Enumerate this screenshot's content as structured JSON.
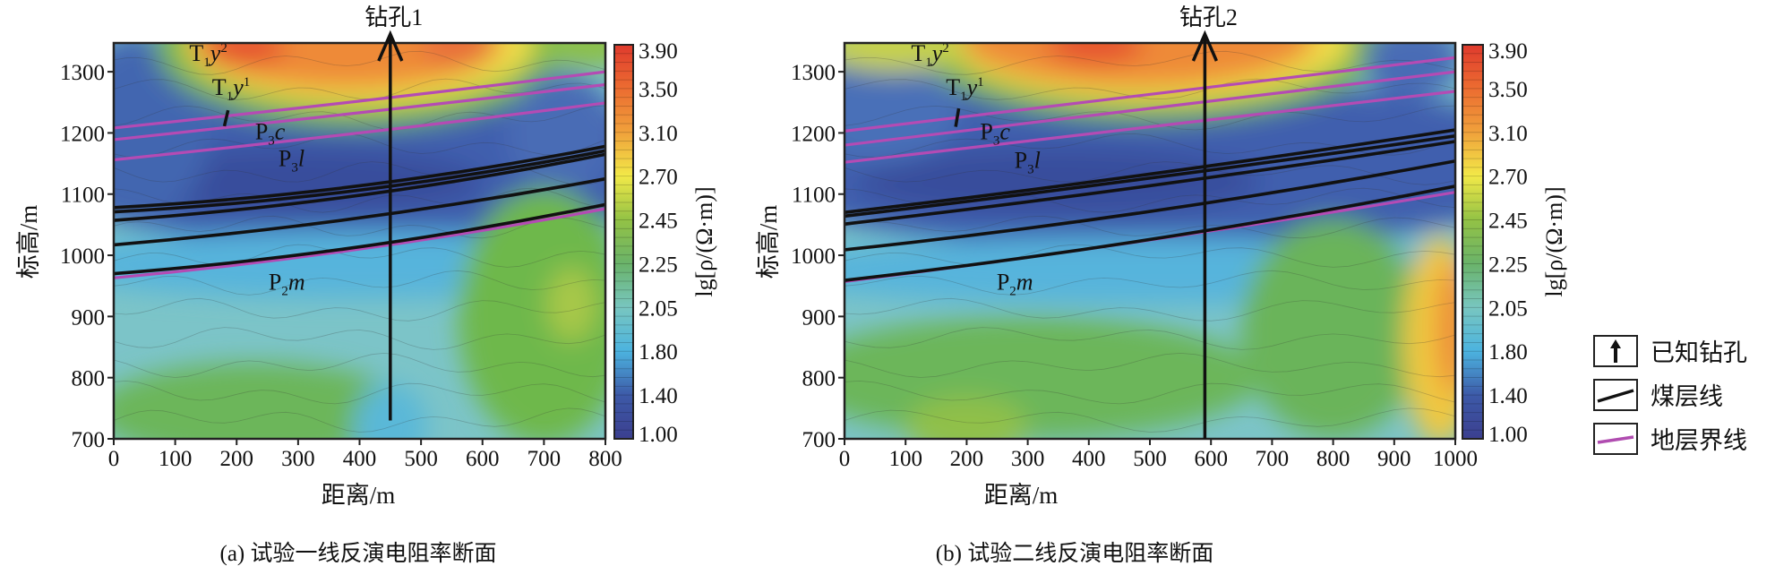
{
  "chart_data": [
    {
      "type": "heatmap",
      "caption": "(a) 试验一线反演电阻率断面",
      "xlabel": "距离/m",
      "ylabel": "标高/m",
      "xlim": [
        0,
        800
      ],
      "ylim": [
        700,
        1347
      ],
      "xticks": [
        0,
        100,
        200,
        300,
        400,
        500,
        600,
        700,
        800
      ],
      "yticks": [
        700,
        800,
        900,
        1000,
        1100,
        1200,
        1300
      ],
      "colorbar": {
        "label": "lg[ρ/(Ω·m)]",
        "ticks": [
          "1.00",
          "1.40",
          "1.80",
          "2.05",
          "2.25",
          "2.45",
          "2.70",
          "3.10",
          "3.50",
          "3.90"
        ],
        "colors": [
          "#3b3f8f",
          "#3d5aa8",
          "#4cb3df",
          "#78c6c0",
          "#6ab36a",
          "#93c245",
          "#f2e948",
          "#f0a13b",
          "#ec6c31",
          "#df3a2d"
        ]
      },
      "borehole": {
        "label": "钻孔1",
        "x": 450,
        "bottom": 730
      },
      "boundary_lines": [
        [
          [
            0,
            1208
          ],
          [
            400,
            1252
          ],
          [
            800,
            1300
          ]
        ],
        [
          [
            0,
            1189
          ],
          [
            400,
            1233
          ],
          [
            800,
            1279
          ]
        ],
        [
          [
            0,
            1156
          ],
          [
            400,
            1200
          ],
          [
            800,
            1249
          ]
        ],
        [
          [
            0,
            963
          ],
          [
            400,
            1010
          ],
          [
            800,
            1076
          ]
        ]
      ],
      "coal_seams": [
        [
          [
            0,
            1078
          ],
          [
            450,
            1120
          ],
          [
            800,
            1178
          ]
        ],
        [
          [
            0,
            1071
          ],
          [
            450,
            1113
          ],
          [
            800,
            1171
          ]
        ],
        [
          [
            0,
            1057
          ],
          [
            450,
            1105
          ],
          [
            800,
            1165
          ]
        ],
        [
          [
            0,
            1017
          ],
          [
            450,
            1068
          ],
          [
            800,
            1125
          ]
        ],
        [
          [
            0,
            970
          ],
          [
            450,
            1021
          ],
          [
            800,
            1083
          ]
        ]
      ],
      "short_mark": [
        [
          186,
          1237
        ],
        [
          180,
          1211
        ]
      ],
      "strata_labels": [
        {
          "base": "T",
          "sub": "1",
          "ital": "y",
          "sup": "2",
          "x": 123,
          "y": 1318
        },
        {
          "base": "T",
          "sub": "1",
          "ital": "y",
          "sup": "1",
          "x": 160,
          "y": 1262
        },
        {
          "base": "P",
          "sub": "3",
          "ital": "c",
          "sup": "",
          "x": 230,
          "y": 1190
        },
        {
          "base": "P",
          "sub": "3",
          "ital": "l",
          "sup": "",
          "x": 268,
          "y": 1146
        },
        {
          "base": "P",
          "sub": "2",
          "ital": "m",
          "sup": "",
          "x": 252,
          "y": 944
        }
      ]
    },
    {
      "type": "heatmap",
      "caption": "(b) 试验二线反演电阻率断面",
      "xlabel": "距离/m",
      "ylabel": "标高/m",
      "xlim": [
        0,
        1000
      ],
      "ylim": [
        700,
        1347
      ],
      "xticks": [
        0,
        100,
        200,
        300,
        400,
        500,
        600,
        700,
        800,
        900,
        1000
      ],
      "yticks": [
        700,
        800,
        900,
        1000,
        1100,
        1200,
        1300
      ],
      "colorbar": {
        "label": "lg[ρ/(Ω·m)]",
        "ticks": [
          "1.00",
          "1.40",
          "1.80",
          "2.05",
          "2.25",
          "2.45",
          "2.70",
          "3.10",
          "3.50",
          "3.90"
        ],
        "colors": [
          "#3b3f8f",
          "#3d5aa8",
          "#4cb3df",
          "#78c6c0",
          "#6ab36a",
          "#93c245",
          "#f2e948",
          "#f0a13b",
          "#ec6c31",
          "#df3a2d"
        ]
      },
      "borehole": {
        "label": "钻孔2",
        "x": 590,
        "bottom": 700
      },
      "boundary_lines": [
        [
          [
            0,
            1203
          ],
          [
            500,
            1262
          ],
          [
            1000,
            1323
          ]
        ],
        [
          [
            0,
            1180
          ],
          [
            500,
            1240
          ],
          [
            1000,
            1300
          ]
        ],
        [
          [
            0,
            1152
          ],
          [
            500,
            1210
          ],
          [
            1000,
            1268
          ]
        ],
        [
          [
            0,
            957
          ],
          [
            500,
            1025
          ],
          [
            1000,
            1103
          ]
        ]
      ],
      "coal_seams": [
        [
          [
            0,
            1070
          ],
          [
            590,
            1145
          ],
          [
            1000,
            1205
          ]
        ],
        [
          [
            0,
            1064
          ],
          [
            590,
            1138
          ],
          [
            1000,
            1195
          ]
        ],
        [
          [
            0,
            1051
          ],
          [
            590,
            1126
          ],
          [
            1000,
            1186
          ]
        ],
        [
          [
            0,
            1009
          ],
          [
            590,
            1085
          ],
          [
            1000,
            1154
          ]
        ],
        [
          [
            0,
            959
          ],
          [
            590,
            1040
          ],
          [
            1000,
            1113
          ]
        ]
      ],
      "short_mark": [
        [
          187,
          1240
        ],
        [
          182,
          1210
        ]
      ],
      "strata_labels": [
        {
          "base": "T",
          "sub": "1",
          "ital": "y",
          "sup": "2",
          "x": 109,
          "y": 1318
        },
        {
          "base": "T",
          "sub": "1",
          "ital": "y",
          "sup": "1",
          "x": 166,
          "y": 1262
        },
        {
          "base": "P",
          "sub": "3",
          "ital": "c",
          "sup": "",
          "x": 222,
          "y": 1190
        },
        {
          "base": "P",
          "sub": "3",
          "ital": "l",
          "sup": "",
          "x": 278,
          "y": 1143
        },
        {
          "base": "P",
          "sub": "2",
          "ital": "m",
          "sup": "",
          "x": 249,
          "y": 944
        }
      ]
    }
  ],
  "legend": {
    "items": [
      {
        "label": "已知钻孔",
        "icon": "arrow-up-icon",
        "color": "#111111"
      },
      {
        "label": "煤层线",
        "icon": "black-line-icon",
        "color": "#111111"
      },
      {
        "label": "地层界线",
        "icon": "magenta-line-icon",
        "color": "#b04cb0"
      }
    ]
  },
  "colors": {
    "coal_seam": "#111111",
    "boundary": "#b44bb4"
  }
}
